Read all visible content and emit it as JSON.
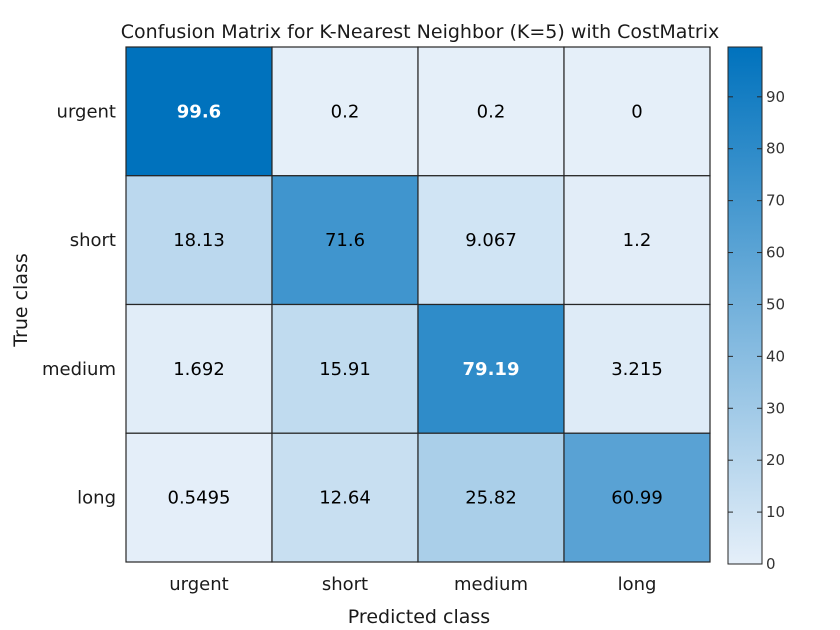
{
  "chart_data": {
    "type": "heatmap",
    "title": "Confusion Matrix for K-Nearest Neighbor (K=5) with CostMatrix",
    "xlabel": "Predicted class",
    "ylabel": "True class",
    "x_categories": [
      "urgent",
      "short",
      "medium",
      "long"
    ],
    "y_categories": [
      "urgent",
      "short",
      "medium",
      "long"
    ],
    "values": [
      [
        99.6,
        0.2,
        0.2,
        0
      ],
      [
        18.13,
        71.6,
        9.067,
        1.2
      ],
      [
        1.692,
        15.91,
        79.19,
        3.215
      ],
      [
        0.5495,
        12.64,
        25.82,
        60.99
      ]
    ],
    "value_labels": [
      [
        "99.6",
        "0.2",
        "0.2",
        "0"
      ],
      [
        "18.13",
        "71.6",
        "9.067",
        "1.2"
      ],
      [
        "1.692",
        "15.91",
        "79.19",
        "3.215"
      ],
      [
        "0.5495",
        "12.64",
        "25.82",
        "60.99"
      ]
    ],
    "colorbar": {
      "range": [
        0,
        99.6
      ],
      "ticks": [
        0,
        10,
        20,
        30,
        40,
        50,
        60,
        70,
        80,
        90
      ],
      "colors": {
        "low": "#e5eff9",
        "high": "#0072bd"
      }
    },
    "label_colors": {
      "dark": "#000000",
      "light": "#ffffff"
    }
  }
}
